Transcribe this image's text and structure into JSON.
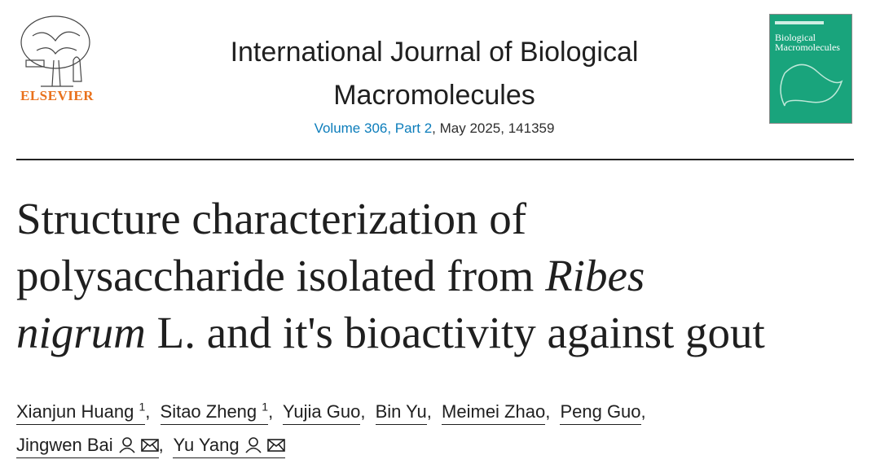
{
  "header": {
    "publisher": "ELSEVIER",
    "journal": "International Journal of Biological Macromolecules",
    "volume_link": "Volume 306, Part 2",
    "issue_info": ", May 2025, 141359",
    "cover_title": "Biological Macromolecules"
  },
  "article": {
    "title_lines": [
      [
        {
          "text": "Structure characterization of",
          "italic": false
        }
      ],
      [
        {
          "text": "polysaccharide isolated from ",
          "italic": false
        },
        {
          "text": "Ribes",
          "italic": true
        }
      ],
      [
        {
          "text": "nigrum",
          "italic": true
        },
        {
          "text": " L. and it's bioactivity against gout",
          "italic": false
        }
      ]
    ],
    "separator": ",",
    "authors": [
      {
        "name": "Xianjun Huang",
        "sup": "1"
      },
      {
        "name": "Sitao Zheng",
        "sup": "1"
      },
      {
        "name": "Yujia Guo"
      },
      {
        "name": "Bin Yu"
      },
      {
        "name": "Meimei Zhao"
      },
      {
        "name": "Peng Guo"
      },
      {
        "name": "Jingwen Bai",
        "contact": true
      },
      {
        "name": "Yu Yang",
        "contact": true
      }
    ]
  }
}
